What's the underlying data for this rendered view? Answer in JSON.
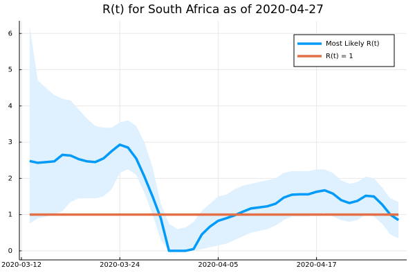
{
  "chart_data": {
    "type": "line",
    "title": "R(t) for South Africa as of 2020-04-27",
    "x": [
      "2020-03-13",
      "2020-03-14",
      "2020-03-15",
      "2020-03-16",
      "2020-03-17",
      "2020-03-18",
      "2020-03-19",
      "2020-03-20",
      "2020-03-21",
      "2020-03-22",
      "2020-03-23",
      "2020-03-24",
      "2020-03-25",
      "2020-03-26",
      "2020-03-27",
      "2020-03-28",
      "2020-03-29",
      "2020-03-30",
      "2020-03-31",
      "2020-04-01",
      "2020-04-02",
      "2020-04-03",
      "2020-04-04",
      "2020-04-05",
      "2020-04-06",
      "2020-04-07",
      "2020-04-08",
      "2020-04-09",
      "2020-04-10",
      "2020-04-11",
      "2020-04-12",
      "2020-04-13",
      "2020-04-14",
      "2020-04-15",
      "2020-04-16",
      "2020-04-17",
      "2020-04-18",
      "2020-04-19",
      "2020-04-20",
      "2020-04-21",
      "2020-04-22",
      "2020-04-23",
      "2020-04-24",
      "2020-04-25",
      "2020-04-26",
      "2020-04-27"
    ],
    "series": [
      {
        "name": "Most Likely R(t)",
        "color": "#009af9",
        "band_color": "#dff0fe",
        "values": [
          2.48,
          2.43,
          2.45,
          2.47,
          2.65,
          2.63,
          2.53,
          2.47,
          2.45,
          2.55,
          2.75,
          2.93,
          2.85,
          2.55,
          2.05,
          1.5,
          0.9,
          0,
          0,
          0,
          0.05,
          0.45,
          0.67,
          0.83,
          0.9,
          0.98,
          1.08,
          1.17,
          1.2,
          1.23,
          1.3,
          1.47,
          1.55,
          1.56,
          1.56,
          1.63,
          1.67,
          1.58,
          1.4,
          1.32,
          1.38,
          1.52,
          1.5,
          1.28,
          1.0,
          0.85
        ],
        "upper": [
          6.2,
          4.7,
          4.5,
          4.3,
          4.2,
          4.15,
          3.9,
          3.65,
          3.45,
          3.4,
          3.4,
          3.55,
          3.6,
          3.45,
          3.0,
          2.3,
          1.3,
          0.75,
          0.6,
          0.65,
          0.8,
          1.1,
          1.3,
          1.5,
          1.55,
          1.7,
          1.8,
          1.85,
          1.9,
          1.95,
          2.0,
          2.15,
          2.2,
          2.2,
          2.2,
          2.25,
          2.25,
          2.15,
          1.95,
          1.85,
          1.9,
          2.05,
          2.0,
          1.75,
          1.45,
          1.35
        ],
        "lower": [
          0.75,
          0.9,
          0.95,
          1.0,
          1.1,
          1.35,
          1.45,
          1.45,
          1.45,
          1.5,
          1.7,
          2.15,
          2.25,
          2.1,
          1.6,
          1.0,
          0.3,
          0,
          0,
          0,
          0,
          0.05,
          0.1,
          0.15,
          0.2,
          0.3,
          0.4,
          0.5,
          0.55,
          0.6,
          0.7,
          0.85,
          0.95,
          0.95,
          0.95,
          1.0,
          1.05,
          0.95,
          0.85,
          0.8,
          0.85,
          1.0,
          0.95,
          0.75,
          0.45,
          0.35
        ]
      },
      {
        "name": "R(t) = 1",
        "color": "#e26f46",
        "values": [
          1,
          1,
          1,
          1,
          1,
          1,
          1,
          1,
          1,
          1,
          1,
          1,
          1,
          1,
          1,
          1,
          1,
          1,
          1,
          1,
          1,
          1,
          1,
          1,
          1,
          1,
          1,
          1,
          1,
          1,
          1,
          1,
          1,
          1,
          1,
          1,
          1,
          1,
          1,
          1,
          1,
          1,
          1,
          1,
          1,
          1
        ]
      }
    ],
    "xlim": [
      "2020-03-12",
      "2020-04-28"
    ],
    "xticks": [
      "2020-03-12",
      "2020-03-24",
      "2020-04-05",
      "2020-04-17"
    ],
    "ylim": [
      -0.25,
      6.35
    ],
    "yticks": [
      0,
      1,
      2,
      3,
      4,
      5,
      6
    ],
    "grid": true,
    "legend": "top-right"
  }
}
